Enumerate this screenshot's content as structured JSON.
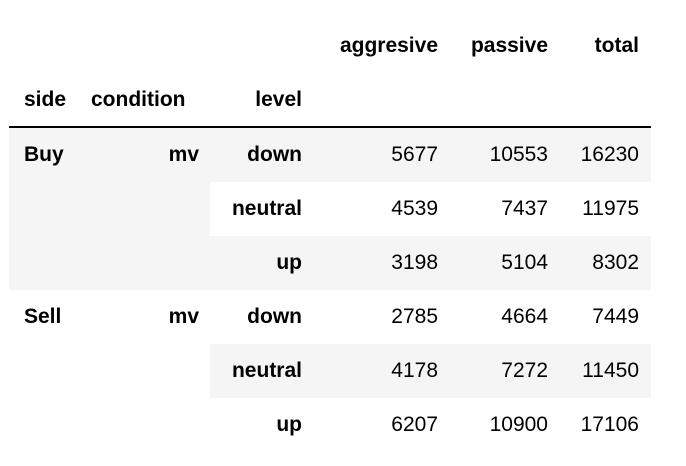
{
  "table": {
    "column_headers": [
      "aggresive",
      "passive",
      "total"
    ],
    "index_names": [
      "side",
      "condition",
      "level"
    ],
    "rows": [
      {
        "side": "Buy",
        "condition": "mv",
        "level": "down",
        "aggresive": "5677",
        "passive": "10553",
        "total": "16230"
      },
      {
        "side": "",
        "condition": "",
        "level": "neutral",
        "aggresive": "4539",
        "passive": "7437",
        "total": "11975"
      },
      {
        "side": "",
        "condition": "",
        "level": "up",
        "aggresive": "3198",
        "passive": "5104",
        "total": "8302"
      },
      {
        "side": "Sell",
        "condition": "mv",
        "level": "down",
        "aggresive": "2785",
        "passive": "4664",
        "total": "7449"
      },
      {
        "side": "",
        "condition": "",
        "level": "neutral",
        "aggresive": "4178",
        "passive": "7272",
        "total": "11450"
      },
      {
        "side": "",
        "condition": "",
        "level": "up",
        "aggresive": "6207",
        "passive": "10900",
        "total": "17106"
      }
    ]
  }
}
